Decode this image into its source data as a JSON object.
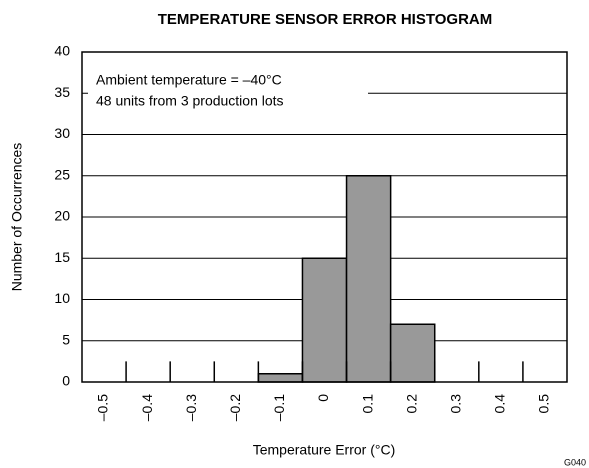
{
  "chart_data": {
    "type": "histogram",
    "title": "TEMPERATURE SENSOR ERROR HISTOGRAM",
    "xlabel": "Temperature Error (°C)",
    "ylabel": "Number of Occurrences",
    "annotations": [
      "Ambient temperature = –40°C",
      "48 units from 3 production lots"
    ],
    "footnote": "G040",
    "bins": [
      -0.55,
      -0.45,
      -0.35,
      -0.25,
      -0.15,
      -0.05,
      0.05,
      0.15,
      0.25,
      0.35,
      0.45,
      0.55
    ],
    "values": [
      0,
      0,
      0,
      0,
      1,
      15,
      25,
      7,
      0,
      0,
      0
    ],
    "color": "#999999",
    "xlim": [
      -0.55,
      0.55
    ],
    "xticks": [
      {
        "value": -0.5,
        "label": "–0.5"
      },
      {
        "value": -0.4,
        "label": "–0.4"
      },
      {
        "value": -0.3,
        "label": "–0.3"
      },
      {
        "value": -0.2,
        "label": "–0.2"
      },
      {
        "value": -0.1,
        "label": "–0.1"
      },
      0,
      0.1,
      0.2,
      0.3,
      0.4,
      0.5
    ],
    "ylim": [
      0,
      40
    ],
    "yticks": [
      0,
      5,
      10,
      15,
      20,
      25,
      30,
      35,
      40
    ],
    "grid": true
  }
}
